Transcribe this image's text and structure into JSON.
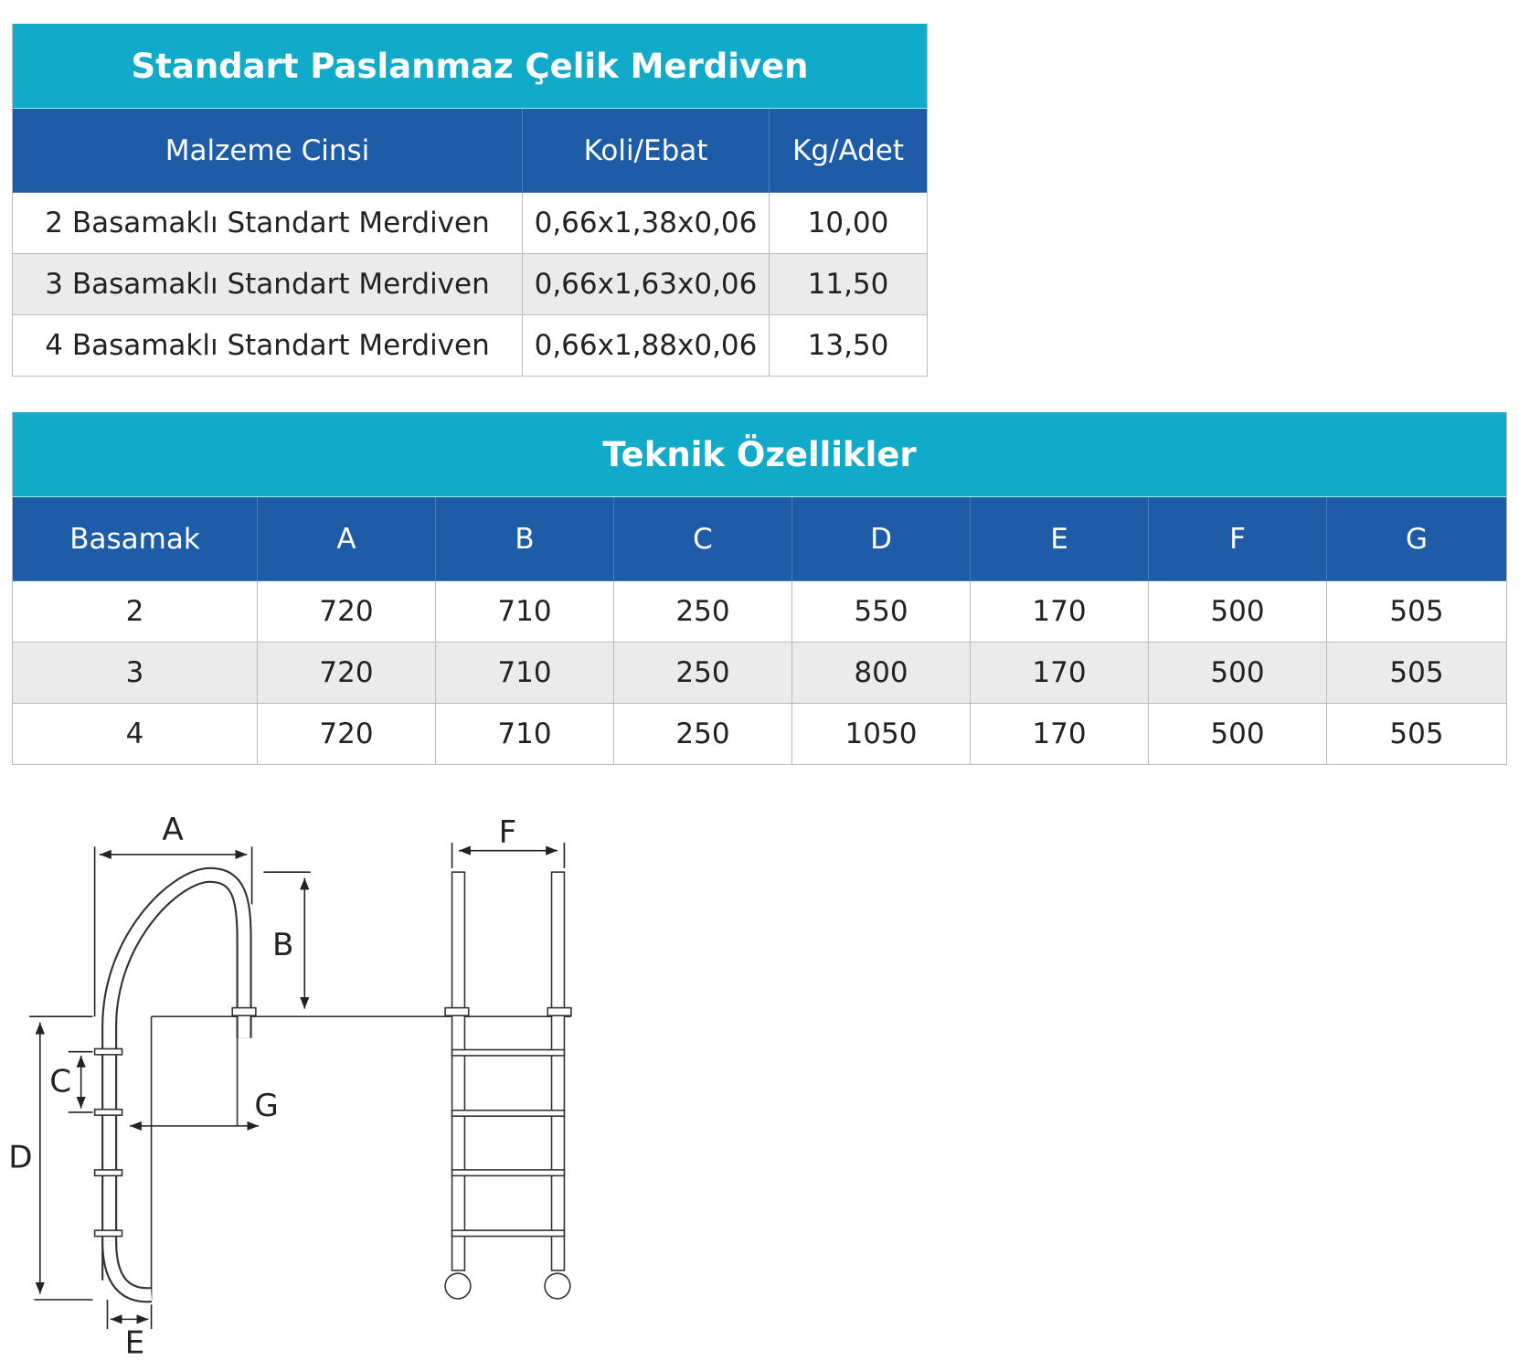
{
  "table1": {
    "title": "Standart Paslanmaz Çelik Merdiven",
    "headers": [
      "Malzeme Cinsi",
      "Koli/Ebat",
      "Kg/Adet"
    ],
    "rows": [
      [
        "2 Basamaklı Standart Merdiven",
        "0,66x1,38x0,06",
        "10,00"
      ],
      [
        "3 Basamaklı Standart Merdiven",
        "0,66x1,63x0,06",
        "11,50"
      ],
      [
        "4 Basamaklı Standart Merdiven",
        "0,66x1,88x0,06",
        "13,50"
      ]
    ]
  },
  "table2": {
    "title": "Teknik Özellikler",
    "headers": [
      "Basamak",
      "A",
      "B",
      "C",
      "D",
      "E",
      "F",
      "G"
    ],
    "rows": [
      [
        2,
        720,
        710,
        250,
        550,
        170,
        500,
        505
      ],
      [
        3,
        720,
        710,
        250,
        800,
        170,
        500,
        505
      ],
      [
        4,
        720,
        710,
        250,
        1050,
        170,
        500,
        505
      ]
    ]
  },
  "diagram": {
    "labels": [
      "A",
      "B",
      "C",
      "D",
      "E",
      "F",
      "G"
    ]
  }
}
